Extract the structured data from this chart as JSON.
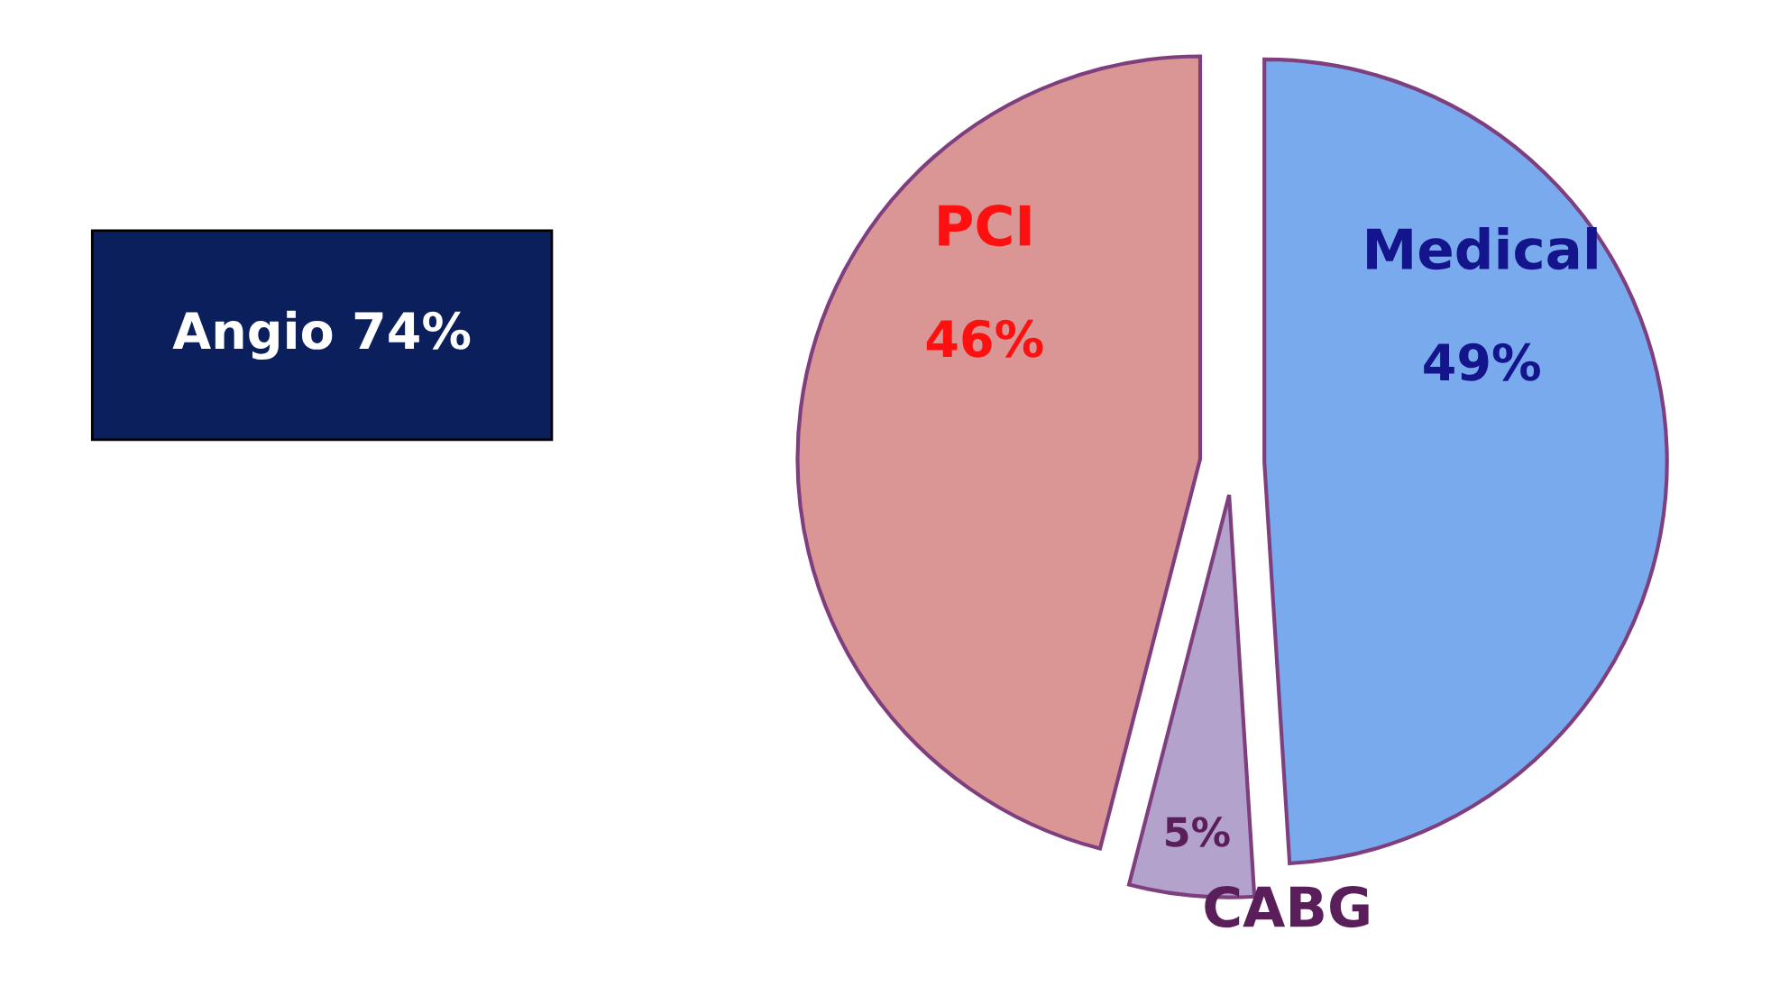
{
  "chart_data": {
    "type": "pie",
    "categories": [
      "Medical",
      "CABG",
      "PCI"
    ],
    "values": [
      49,
      5,
      46
    ],
    "colors": [
      "#7aaaee",
      "#b3a2cc",
      "#d99694"
    ],
    "value_labels": [
      "49%",
      "5%",
      "46%"
    ],
    "annotations": [
      "Angio 74%"
    ]
  }
}
